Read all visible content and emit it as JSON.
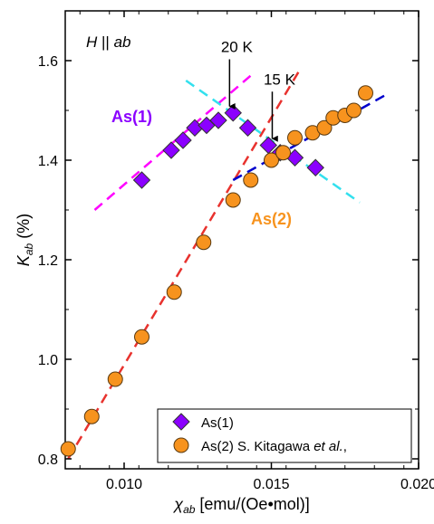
{
  "chart_data": {
    "type": "scatter",
    "xlabel": "χ_ab [emu/(Oe•mol)]",
    "ylabel": "K_ab (%)",
    "xlim": [
      0.008,
      0.02
    ],
    "ylim": [
      0.78,
      1.7
    ],
    "xticks": [
      "0.010",
      "0.015",
      "0.020"
    ],
    "yticks": [
      "0.8",
      "1.0",
      "1.2",
      "1.4",
      "1.6"
    ],
    "xtick_values": [
      0.01,
      0.015,
      0.02
    ],
    "ytick_values": [
      0.8,
      1.0,
      1.2,
      1.4,
      1.6
    ],
    "field_label": "H || ab",
    "series": [
      {
        "name": "As(1)",
        "legend": "As(1)",
        "marker": "diamond",
        "color": "#8b00ff",
        "x": [
          0.0106,
          0.0116,
          0.012,
          0.0124,
          0.0128,
          0.0132,
          0.0137,
          0.0142,
          0.0149,
          0.0153,
          0.0158,
          0.0165
        ],
        "y": [
          1.36,
          1.42,
          1.44,
          1.465,
          1.47,
          1.48,
          1.495,
          1.465,
          1.43,
          1.415,
          1.405,
          1.385
        ]
      },
      {
        "name": "As(2)",
        "legend": "As(2) S. Kitagawa et al.,",
        "marker": "circle",
        "color": "#f7931e",
        "x": [
          0.0081,
          0.0089,
          0.0097,
          0.0106,
          0.0117,
          0.0127,
          0.0137,
          0.0143,
          0.015,
          0.0154,
          0.0158,
          0.0164,
          0.0168,
          0.0171,
          0.0175,
          0.0178,
          0.0182
        ],
        "y": [
          0.82,
          0.885,
          0.96,
          1.045,
          1.135,
          1.235,
          1.32,
          1.36,
          1.4,
          1.415,
          1.445,
          1.455,
          1.465,
          1.485,
          1.49,
          1.5,
          1.535
        ]
      }
    ],
    "fit_lines": [
      {
        "color": "#e8322e",
        "x": [
          0.0081,
          0.016
        ],
        "y": [
          0.8,
          1.585
        ]
      },
      {
        "color": "#ff00ff",
        "x": [
          0.009,
          0.0143
        ],
        "y": [
          1.3,
          1.57
        ]
      },
      {
        "color": "#33e0ee",
        "x": [
          0.0121,
          0.018
        ],
        "y": [
          1.56,
          1.315
        ]
      },
      {
        "color": "#0000cc",
        "x": [
          0.0137,
          0.019
        ],
        "y": [
          1.36,
          1.535
        ]
      }
    ],
    "annotations": [
      {
        "text": "20 K",
        "x": 0.01358,
        "y": 1.49
      },
      {
        "text": "15 K",
        "x": 0.01503,
        "y": 1.425
      }
    ],
    "series_labels": [
      {
        "text": "As(1)",
        "color": "#8b00ff"
      },
      {
        "text": "As(2)",
        "color": "#f7931e"
      }
    ],
    "legend_position": "bottom-right",
    "grid": false
  }
}
